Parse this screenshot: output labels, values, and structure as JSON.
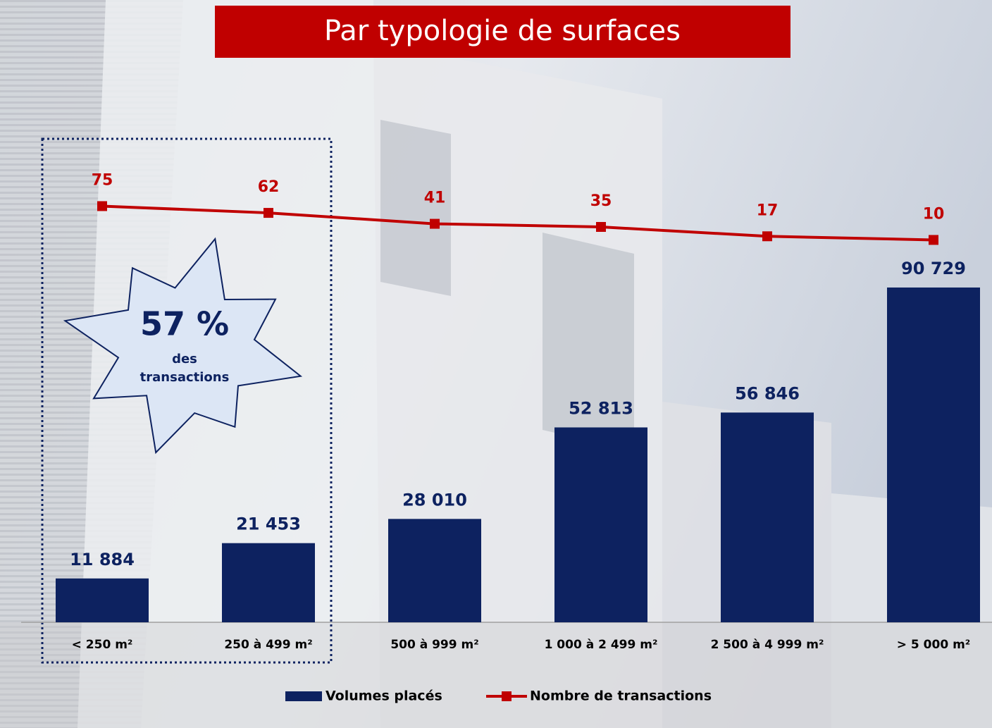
{
  "chart_data": {
    "type": "bar_line",
    "title": "Par typologie de surfaces",
    "categories": [
      "< 250 m²",
      "250 à 499 m²",
      "500 à 999 m²",
      "1 000 à 2 499 m²",
      "2 500 à 4 999 m²",
      "> 5 000 m²"
    ],
    "series": [
      {
        "name": "Volumes placés",
        "type": "bar",
        "color": "#0d2260",
        "values": [
          11884,
          21453,
          28010,
          52813,
          56846,
          90729
        ],
        "value_labels": [
          "11 884",
          "21 453",
          "28 010",
          "52 813",
          "56 846",
          "90 729"
        ]
      },
      {
        "name": "Nombre de transactions",
        "type": "line",
        "axis": "y2",
        "color": "#c00000",
        "values": [
          75,
          62,
          41,
          35,
          17,
          10
        ]
      }
    ],
    "ylim": [
      0,
      140000
    ],
    "y2lim": [
      -725,
      268
    ],
    "legend": "bottom",
    "annotations": [
      "57 %",
      "des",
      "transactions"
    ]
  }
}
